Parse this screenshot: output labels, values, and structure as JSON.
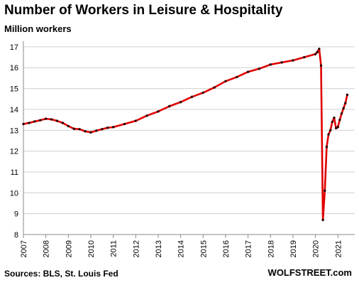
{
  "title": "Number of Workers in Leisure & Hospitality",
  "subtitle": "Million workers",
  "source": "Sources: BLS, St. Louis Fed",
  "brand": "WOLFSTREET.com",
  "colors": {
    "line": "#e00000",
    "marker": "#2a0000",
    "grid": "#d0d0d0",
    "axis": "#888888"
  },
  "chart_data": {
    "type": "line",
    "title": "Number of Workers in Leisure & Hospitality",
    "subtitle": "Million workers",
    "xlabel": "",
    "ylabel": "",
    "xlim": [
      2007,
      2021.75
    ],
    "ylim": [
      8,
      17.2
    ],
    "yticks": [
      8,
      9,
      10,
      11,
      12,
      13,
      14,
      15,
      16,
      17
    ],
    "xticks": [
      "2007",
      "2008",
      "2009",
      "2010",
      "2011",
      "2012",
      "2013",
      "2014",
      "2015",
      "2016",
      "2017",
      "2018",
      "2019",
      "2020",
      "2021"
    ],
    "grid": "horizontal",
    "series": [
      {
        "name": "",
        "x": [
          2007.0,
          2007.25,
          2007.5,
          2007.75,
          2008.0,
          2008.25,
          2008.5,
          2008.75,
          2009.0,
          2009.25,
          2009.5,
          2009.75,
          2010.0,
          2010.25,
          2010.5,
          2010.75,
          2011.0,
          2011.5,
          2012.0,
          2012.5,
          2013.0,
          2013.5,
          2014.0,
          2014.5,
          2015.0,
          2015.5,
          2016.0,
          2016.5,
          2017.0,
          2017.5,
          2018.0,
          2018.5,
          2019.0,
          2019.5,
          2020.0,
          2020.083,
          2020.167,
          2020.25,
          2020.333,
          2020.417,
          2020.5,
          2020.583,
          2020.667,
          2020.75,
          2020.833,
          2020.917,
          2021.0,
          2021.083,
          2021.167,
          2021.25,
          2021.333,
          2021.417
        ],
        "y": [
          13.3,
          13.35,
          13.42,
          13.48,
          13.55,
          13.52,
          13.45,
          13.35,
          13.2,
          13.07,
          13.05,
          12.95,
          12.9,
          12.98,
          13.05,
          13.12,
          13.15,
          13.3,
          13.45,
          13.7,
          13.9,
          14.15,
          14.35,
          14.6,
          14.8,
          15.05,
          15.35,
          15.55,
          15.8,
          15.95,
          16.15,
          16.25,
          16.35,
          16.5,
          16.65,
          16.75,
          16.9,
          16.1,
          8.7,
          10.1,
          12.2,
          12.8,
          13.0,
          13.4,
          13.6,
          13.1,
          13.15,
          13.5,
          13.8,
          14.05,
          14.3,
          14.7
        ]
      }
    ]
  }
}
